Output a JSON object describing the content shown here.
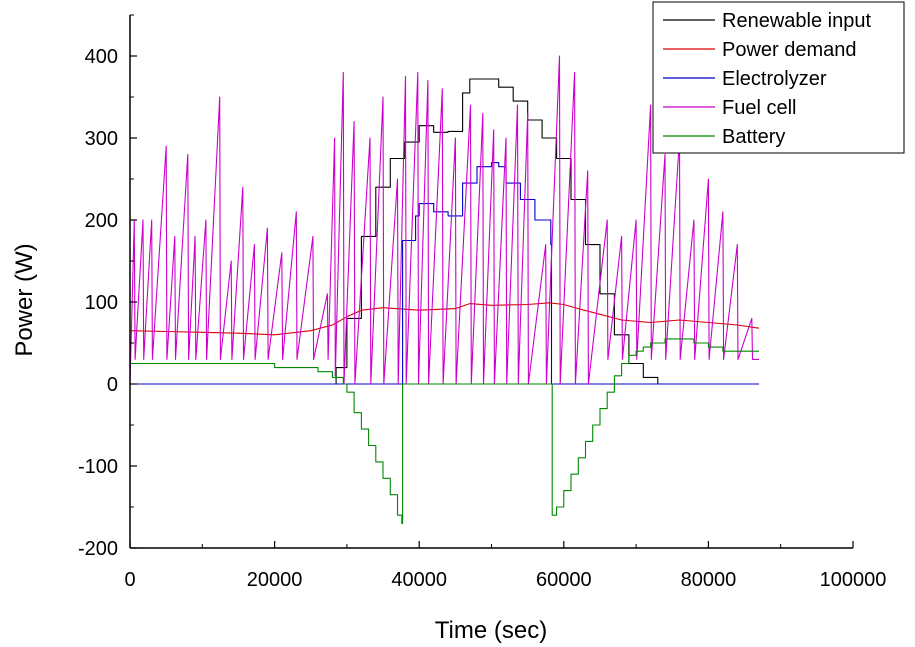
{
  "chart_data": {
    "type": "line",
    "title": "",
    "xlabel": "Time (sec)",
    "ylabel": "Power (W)",
    "xlim": [
      0,
      100000
    ],
    "ylim": [
      -200,
      450
    ],
    "xticks": [
      0,
      20000,
      40000,
      60000,
      80000,
      100000
    ],
    "yticks": [
      -200,
      -100,
      0,
      100,
      200,
      300,
      400
    ],
    "grid": false,
    "legend_position": "top-right",
    "series": [
      {
        "name": "Renewable input",
        "color": "#000000",
        "step": true,
        "x": [
          0,
          27000,
          28500,
          30000,
          32000,
          34000,
          36000,
          38000,
          40000,
          42000,
          44000,
          46000,
          47000,
          49000,
          51000,
          53000,
          55000,
          57000,
          59000,
          61000,
          63000,
          65000,
          67000,
          69000,
          71000,
          73000,
          87000
        ],
        "y": [
          0,
          0,
          20,
          80,
          180,
          240,
          275,
          295,
          315,
          307,
          308,
          355,
          372,
          372,
          362,
          345,
          322,
          300,
          275,
          225,
          170,
          110,
          60,
          25,
          8,
          0,
          0
        ]
      },
      {
        "name": "Power demand",
        "color": "#dd0000",
        "x": [
          0,
          5000,
          10000,
          15000,
          20000,
          25000,
          28000,
          30000,
          32000,
          35000,
          40000,
          45000,
          47000,
          50000,
          55000,
          58000,
          60000,
          62000,
          65000,
          68000,
          72000,
          76000,
          80000,
          84000,
          87000
        ],
        "y": [
          65,
          64,
          63,
          62,
          60,
          65,
          72,
          82,
          90,
          93,
          90,
          92,
          98,
          96,
          97,
          99,
          97,
          92,
          85,
          78,
          75,
          78,
          75,
          72,
          68
        ]
      },
      {
        "name": "Electrolyzer",
        "color": "#0000cc",
        "step": true,
        "x": [
          0,
          37600,
          37700,
          39500,
          40000,
          42000,
          44000,
          46000,
          48000,
          50000,
          51000,
          52000,
          54000,
          56000,
          58200,
          58300,
          87000
        ],
        "y": [
          0,
          0,
          175,
          205,
          220,
          210,
          205,
          245,
          265,
          270,
          265,
          245,
          225,
          200,
          170,
          0,
          0
        ]
      },
      {
        "name": "Fuel cell",
        "color": "#cc00cc",
        "x": [
          0,
          600,
          700,
          1800,
          1900,
          3000,
          3100,
          5000,
          5100,
          6200,
          6300,
          8000,
          8100,
          9000,
          9100,
          10500,
          10600,
          12400,
          12500,
          14000,
          14100,
          15600,
          15700,
          17200,
          17300,
          19000,
          19100,
          21000,
          21100,
          23000,
          23100,
          25300,
          25400,
          27300,
          27400,
          28300,
          28400,
          29500,
          29600,
          31000,
          31100,
          33200,
          33300,
          35000,
          35100,
          37000,
          37100,
          38100,
          38200,
          39800,
          39900,
          41200,
          41300,
          43200,
          43300,
          45000,
          45100,
          47100,
          47200,
          48800,
          48900,
          50300,
          50400,
          52000,
          52100,
          53600,
          53700,
          55000,
          55100,
          57500,
          57600,
          59400,
          59500,
          61500,
          61600,
          63300,
          63400,
          66000,
          66100,
          68000,
          68100,
          70000,
          70100,
          72000,
          72100,
          74000,
          74100,
          76000,
          76100,
          78000,
          78100,
          80000,
          80100,
          82000,
          82100,
          84000,
          84100,
          86000,
          86100,
          87000
        ],
        "y": [
          0,
          200,
          30,
          200,
          30,
          200,
          30,
          290,
          30,
          180,
          30,
          280,
          30,
          180,
          30,
          200,
          30,
          350,
          30,
          150,
          30,
          240,
          30,
          170,
          30,
          190,
          30,
          160,
          30,
          210,
          30,
          180,
          30,
          110,
          30,
          300,
          10,
          380,
          0,
          320,
          0,
          300,
          0,
          350,
          0,
          250,
          0,
          375,
          0,
          380,
          0,
          370,
          0,
          360,
          0,
          300,
          0,
          340,
          0,
          330,
          0,
          310,
          0,
          300,
          0,
          340,
          0,
          330,
          0,
          170,
          0,
          400,
          0,
          380,
          0,
          260,
          0,
          200,
          30,
          180,
          30,
          200,
          30,
          340,
          30,
          280,
          30,
          300,
          30,
          200,
          30,
          250,
          30,
          210,
          30,
          170,
          30,
          80,
          30,
          30
        ]
      },
      {
        "name": "Battery",
        "color": "#008800",
        "step": true,
        "x": [
          0,
          10000,
          20000,
          26000,
          28000,
          29500,
          30000,
          31000,
          32000,
          33000,
          34000,
          35000,
          36000,
          37000,
          37600,
          37700,
          38000,
          40000,
          58300,
          58400,
          59000,
          60000,
          61000,
          62000,
          63000,
          64000,
          65000,
          66000,
          67000,
          68000,
          69000,
          70000,
          71000,
          72000,
          74000,
          76000,
          78000,
          80000,
          82000,
          84000,
          87000
        ],
        "y": [
          25,
          25,
          20,
          15,
          8,
          0,
          -10,
          -35,
          -55,
          -75,
          -95,
          -115,
          -135,
          -160,
          -170,
          0,
          0,
          0,
          0,
          -160,
          -150,
          -130,
          -110,
          -90,
          -70,
          -50,
          -30,
          -10,
          10,
          25,
          35,
          40,
          45,
          50,
          55,
          55,
          50,
          45,
          40,
          40,
          40
        ]
      }
    ]
  }
}
